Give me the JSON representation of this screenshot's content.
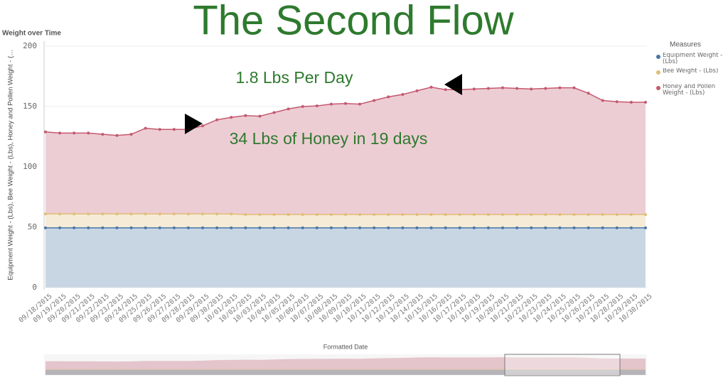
{
  "header": {
    "title": "The Second Flow"
  },
  "chart_data": {
    "type": "area",
    "title": "Weight over Time",
    "y_label": "Equipment Weight - (Lbs), Bee Weight - (Lbs), Honey and Pollen Weight - (…",
    "x_label": "Formatted Date",
    "legend_title": "Measures",
    "legend": "right",
    "grid": true,
    "annotations": [
      "1.8 Lbs Per Day",
      "34 Lbs of Honey in 19 days"
    ],
    "categories": [
      "09/18/2015",
      "09/19/2015",
      "09/20/2015",
      "09/21/2015",
      "09/22/2015",
      "09/23/2015",
      "09/24/2015",
      "09/25/2015",
      "09/26/2015",
      "09/27/2015",
      "09/28/2015",
      "09/29/2015",
      "09/30/2015",
      "10/01/2015",
      "10/02/2015",
      "10/03/2015",
      "10/04/2015",
      "10/05/2015",
      "10/06/2015",
      "10/07/2015",
      "10/08/2015",
      "10/09/2015",
      "10/10/2015",
      "10/11/2015",
      "10/12/2015",
      "10/13/2015",
      "10/14/2015",
      "10/15/2015",
      "10/16/2015",
      "10/17/2015",
      "10/18/2015",
      "10/19/2015",
      "10/20/2015",
      "10/21/2015",
      "10/22/2015",
      "10/23/2015",
      "10/24/2015",
      "10/25/2015",
      "10/26/2015",
      "10/27/2015",
      "10/28/2015",
      "10/29/2015",
      "10/30/2015"
    ],
    "series": [
      {
        "name": "Equipment Weight - (Lbs)",
        "color": "#4a76a6",
        "values": [
          49.5,
          49.5,
          49.5,
          49.5,
          49.5,
          49.5,
          49.5,
          49.5,
          49.5,
          49.5,
          49.5,
          49.5,
          49.5,
          49.5,
          49.5,
          49.5,
          49.5,
          49.5,
          49.5,
          49.5,
          49.5,
          49.5,
          49.5,
          49.5,
          49.5,
          49.5,
          49.5,
          49.5,
          49.5,
          49.5,
          49.5,
          49.5,
          49.5,
          49.5,
          49.5,
          49.5,
          49.5,
          49.5,
          49.5,
          49.5,
          49.5,
          49.5,
          49.5
        ]
      },
      {
        "name": "Bee Weight - (Lbs)",
        "color": "#e2bd78",
        "values": [
          61,
          61,
          61,
          61,
          61,
          61,
          61,
          61,
          61,
          61,
          61,
          61,
          61,
          61,
          60.5,
          60.5,
          60.5,
          60.5,
          60.5,
          60.5,
          60.5,
          60.5,
          60.5,
          60.5,
          60.5,
          60.5,
          60.5,
          60.5,
          60.5,
          60.5,
          60.5,
          60.5,
          60.5,
          60.5,
          60.5,
          60.5,
          60.5,
          60.5,
          60.5,
          60.5,
          60.5,
          60.5,
          60.5
        ]
      },
      {
        "name": "Honey and Pollen Weight - (Lbs)",
        "color": "#c4596f",
        "values": [
          129,
          128,
          128,
          128,
          127,
          126,
          127,
          132,
          131,
          131,
          131,
          134,
          139,
          141,
          142.5,
          142,
          145,
          148,
          150,
          150.5,
          152,
          152.5,
          152,
          155,
          158,
          160,
          163,
          166,
          164,
          164,
          164.5,
          165,
          165.5,
          165,
          164.5,
          165,
          165.5,
          165.5,
          161,
          155,
          154,
          153.5,
          153.5
        ]
      }
    ],
    "ylim": [
      0,
      200
    ],
    "yticks": [
      0,
      50,
      100,
      150,
      200
    ]
  }
}
